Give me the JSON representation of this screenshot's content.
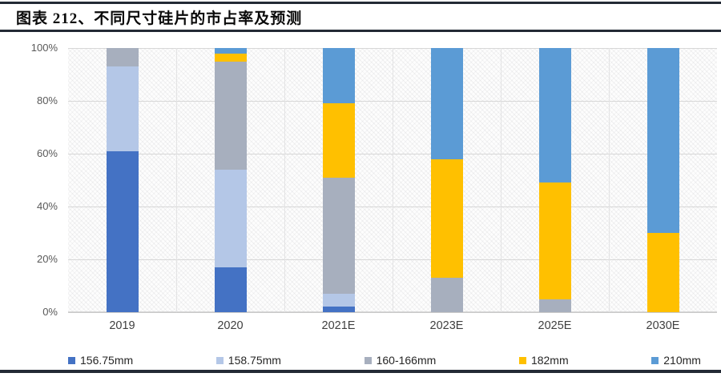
{
  "figure": {
    "title": "图表 212、不同尺寸硅片的市占率及预测"
  },
  "colors": {
    "divider": "#232a35",
    "grid": "#d7d7d7",
    "tick_label": "#595959"
  },
  "chart_data": {
    "type": "bar",
    "stacked": true,
    "percent_stacked": true,
    "title": "不同尺寸硅片的市占率及预测",
    "categories": [
      "2019",
      "2020",
      "2021E",
      "2023E",
      "2025E",
      "2030E"
    ],
    "series": [
      {
        "name": "156.75mm",
        "color": "#4472C4",
        "values": [
          61,
          17,
          2,
          0,
          0,
          0
        ]
      },
      {
        "name": "158.75mm",
        "color": "#B4C7E7",
        "values": [
          32,
          37,
          5,
          0,
          0,
          0
        ]
      },
      {
        "name": "160-166mm",
        "color": "#A7AFBE",
        "values": [
          7,
          41,
          44,
          13,
          5,
          0
        ]
      },
      {
        "name": "182mm",
        "color": "#FFC000",
        "values": [
          0,
          3,
          28,
          45,
          44,
          30
        ]
      },
      {
        "name": "210mm",
        "color": "#5B9BD5",
        "values": [
          0,
          2,
          21,
          42,
          51,
          70
        ]
      }
    ],
    "ylim": [
      0,
      100
    ],
    "yticks": [
      "0%",
      "20%",
      "40%",
      "60%",
      "80%",
      "100%"
    ],
    "xlabel": "",
    "ylabel": "",
    "grid": true,
    "legend_position": "bottom"
  }
}
